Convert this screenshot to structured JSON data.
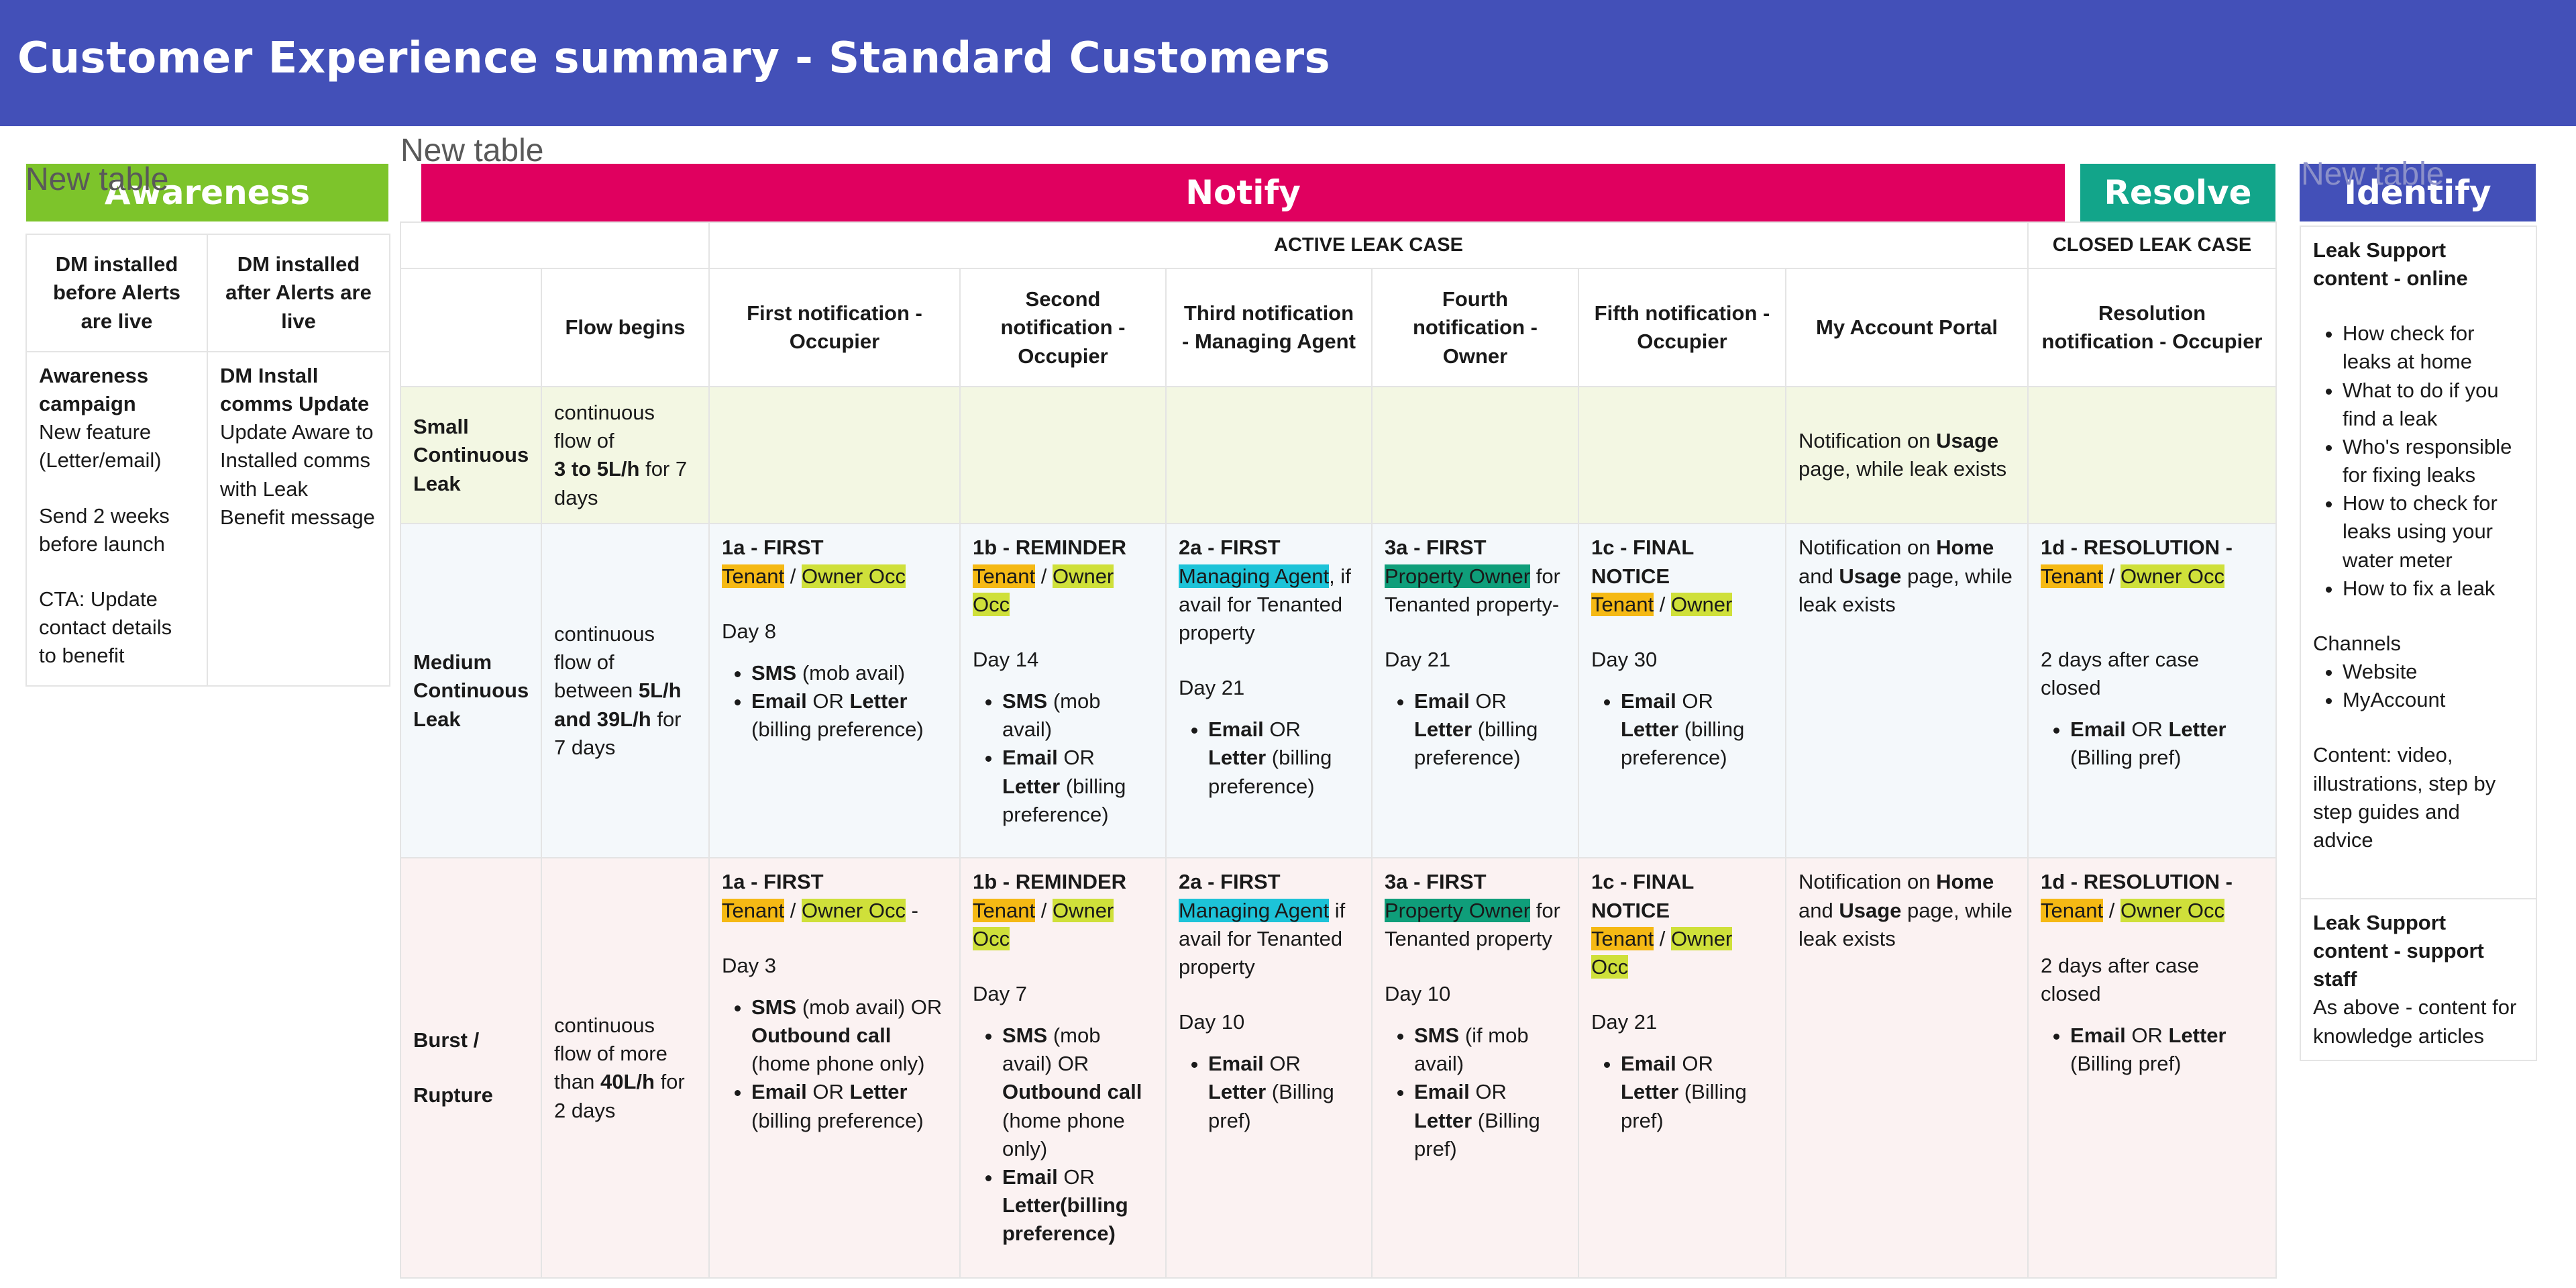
{
  "header": {
    "title": "Customer Experience summary - Standard Customers",
    "bg": "#4350b8"
  },
  "new_table_label": "New table",
  "banners": {
    "awareness": "Awareness",
    "notify": "Notify",
    "resolve": "Resolve",
    "identify": "Identify"
  },
  "colors": {
    "awareness": "#7dc42b",
    "notify": "#e0005f",
    "resolve": "#12a58a",
    "identify": "#4350b8",
    "tenant_highlight": "#f5b914",
    "owner_highlight": "#cfe03a",
    "agent_highlight": "#1dc3d8",
    "property_owner_highlight": "#0f9e7a"
  },
  "awareness_table": {
    "col1_header": "DM installed before Alerts are live",
    "col2_header": "DM installed after Alerts are live",
    "col1_title": "Awareness campaign",
    "col1_line1": "New feature (Letter/email)",
    "col1_line2": "Send 2 weeks before launch",
    "col1_line3": "CTA: Update contact details to benefit",
    "col2_title": "DM Install comms Update",
    "col2_line1": "Update Aware to Installed comms with Leak Benefit message"
  },
  "notify_table": {
    "group_active": "ACTIVE LEAK CASE",
    "group_closed": "CLOSED LEAK CASE",
    "columns": [
      "Flow begins",
      "First notification - Occupier",
      "Second notification - Occupier",
      "Third notification - Managing Agent",
      "Fourth notification - Owner",
      "Fifth notification - Occupier",
      "My Account Portal",
      "Resolution notification - Occupier"
    ],
    "rows": {
      "small": {
        "label": "Small Continuous Leak",
        "flow_pre": "continuous flow of",
        "flow_bold": "3 to 5L/h",
        "flow_post": "for 7 days",
        "portal_pre": "Notification on",
        "portal_bold": "Usage",
        "portal_post": "page, while leak exists"
      },
      "medium": {
        "label": "Medium Continuous Leak",
        "flow_pre": "continuous flow of between",
        "flow_bold": "5L/h and 39L/h",
        "flow_post": "for 7 days",
        "n1_title": "1a - FIRST",
        "n1_day": "Day 8",
        "n2_title": "1b - REMINDER",
        "n2_day": "Day 14",
        "n3_title": "2a - FIRST",
        "n3_day": "Day 21",
        "n3_tail": ", if avail for Tenanted property",
        "n4_title": "3a - FIRST",
        "n4_day": "Day 21",
        "n4_tail": "for Tenanted property-",
        "n5_title": "1c - FINAL NOTICE",
        "n5_day": "Day 30",
        "portal_pre": "Notification on",
        "portal_home": "Home",
        "portal_and": "and",
        "portal_usage": "Usage",
        "portal_post": "page, while leak exists",
        "res_title": "1d - RESOLUTION -",
        "res_day": "2 days after case closed"
      },
      "burst": {
        "label1": "Burst /",
        "label2": "Rupture",
        "flow_pre": "continuous flow of more than",
        "flow_bold": "40L/h",
        "flow_post": "for 2 days",
        "n1_title": "1a - FIRST",
        "n1_day": "Day 3",
        "n1_dash": "-",
        "n2_title": "1b - REMINDER",
        "n2_day": "Day 7",
        "n3_title": "2a - FIRST",
        "n3_day": "Day 10",
        "n3_tail": "if avail for Tenanted property",
        "n4_title": "3a - FIRST",
        "n4_day": "Day 10",
        "n4_tail": "for Tenanted property",
        "n5_title": "1c - FINAL NOTICE",
        "n5_day": "Day 21",
        "portal_pre": "Notification on",
        "portal_home": "Home",
        "portal_and": "and",
        "portal_usage": "Usage",
        "portal_post": "page, while leak exists",
        "res_title": "1d - RESOLUTION -",
        "res_day": "2 days after case closed"
      }
    },
    "terms": {
      "tenant": "Tenant",
      "owner_occ": "Owner Occ",
      "owner": "Owner",
      "slash": "/",
      "managing_agent": "Managing Agent",
      "property_owner": "Property Owner",
      "sms": "SMS",
      "mob_avail": "(mob avail)",
      "mob_avail_or": "(mob avail) OR",
      "if_mob_avail": "(if mob avail)",
      "outbound_call": "Outbound call",
      "home_phone_only": "(home phone only)",
      "email": "Email",
      "or": "OR",
      "letter": "Letter",
      "billing_preference": "(billing preference)",
      "billing_pref_cap": "(Billing pref)",
      "letter_billing_preference": "Letter(billing preference)"
    }
  },
  "identify_table": {
    "online_title": "Leak Support content - online",
    "online_items": [
      "How check for leaks at home",
      "What to do if you find a leak",
      "Who's responsible for fixing leaks",
      "How to check for leaks using your water meter",
      "How to fix a leak"
    ],
    "channels_label": "Channels",
    "channels": [
      "Website",
      "MyAccount"
    ],
    "content_note": "Content: video, illustrations, step by step guides and advice",
    "staff_title": "Leak Support content - support staff",
    "staff_text": "As above - content for knowledge articles"
  }
}
